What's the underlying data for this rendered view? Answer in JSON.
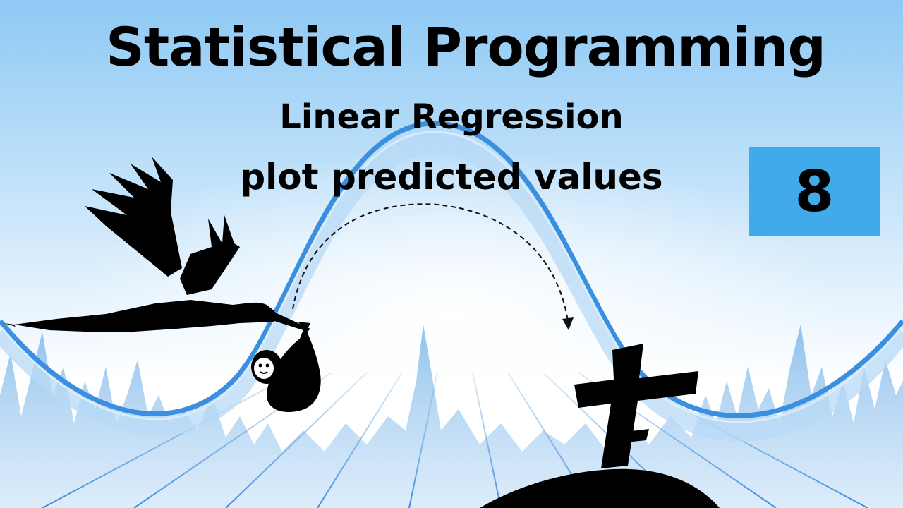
{
  "header": {
    "title": "Statistical Programming",
    "subtitle_line1": "Linear Regression",
    "subtitle_line2": "plot predicted values"
  },
  "episode": {
    "number": "8"
  },
  "colors": {
    "accent": "#41aaea",
    "sky_top": "#8ec9f4",
    "curve": "#3b8fe0",
    "silhouette": "#000000"
  },
  "icons": [
    "stork-icon",
    "baby-bundle-icon",
    "cross-icon",
    "grave-mound-icon",
    "dashed-arrow-icon"
  ]
}
